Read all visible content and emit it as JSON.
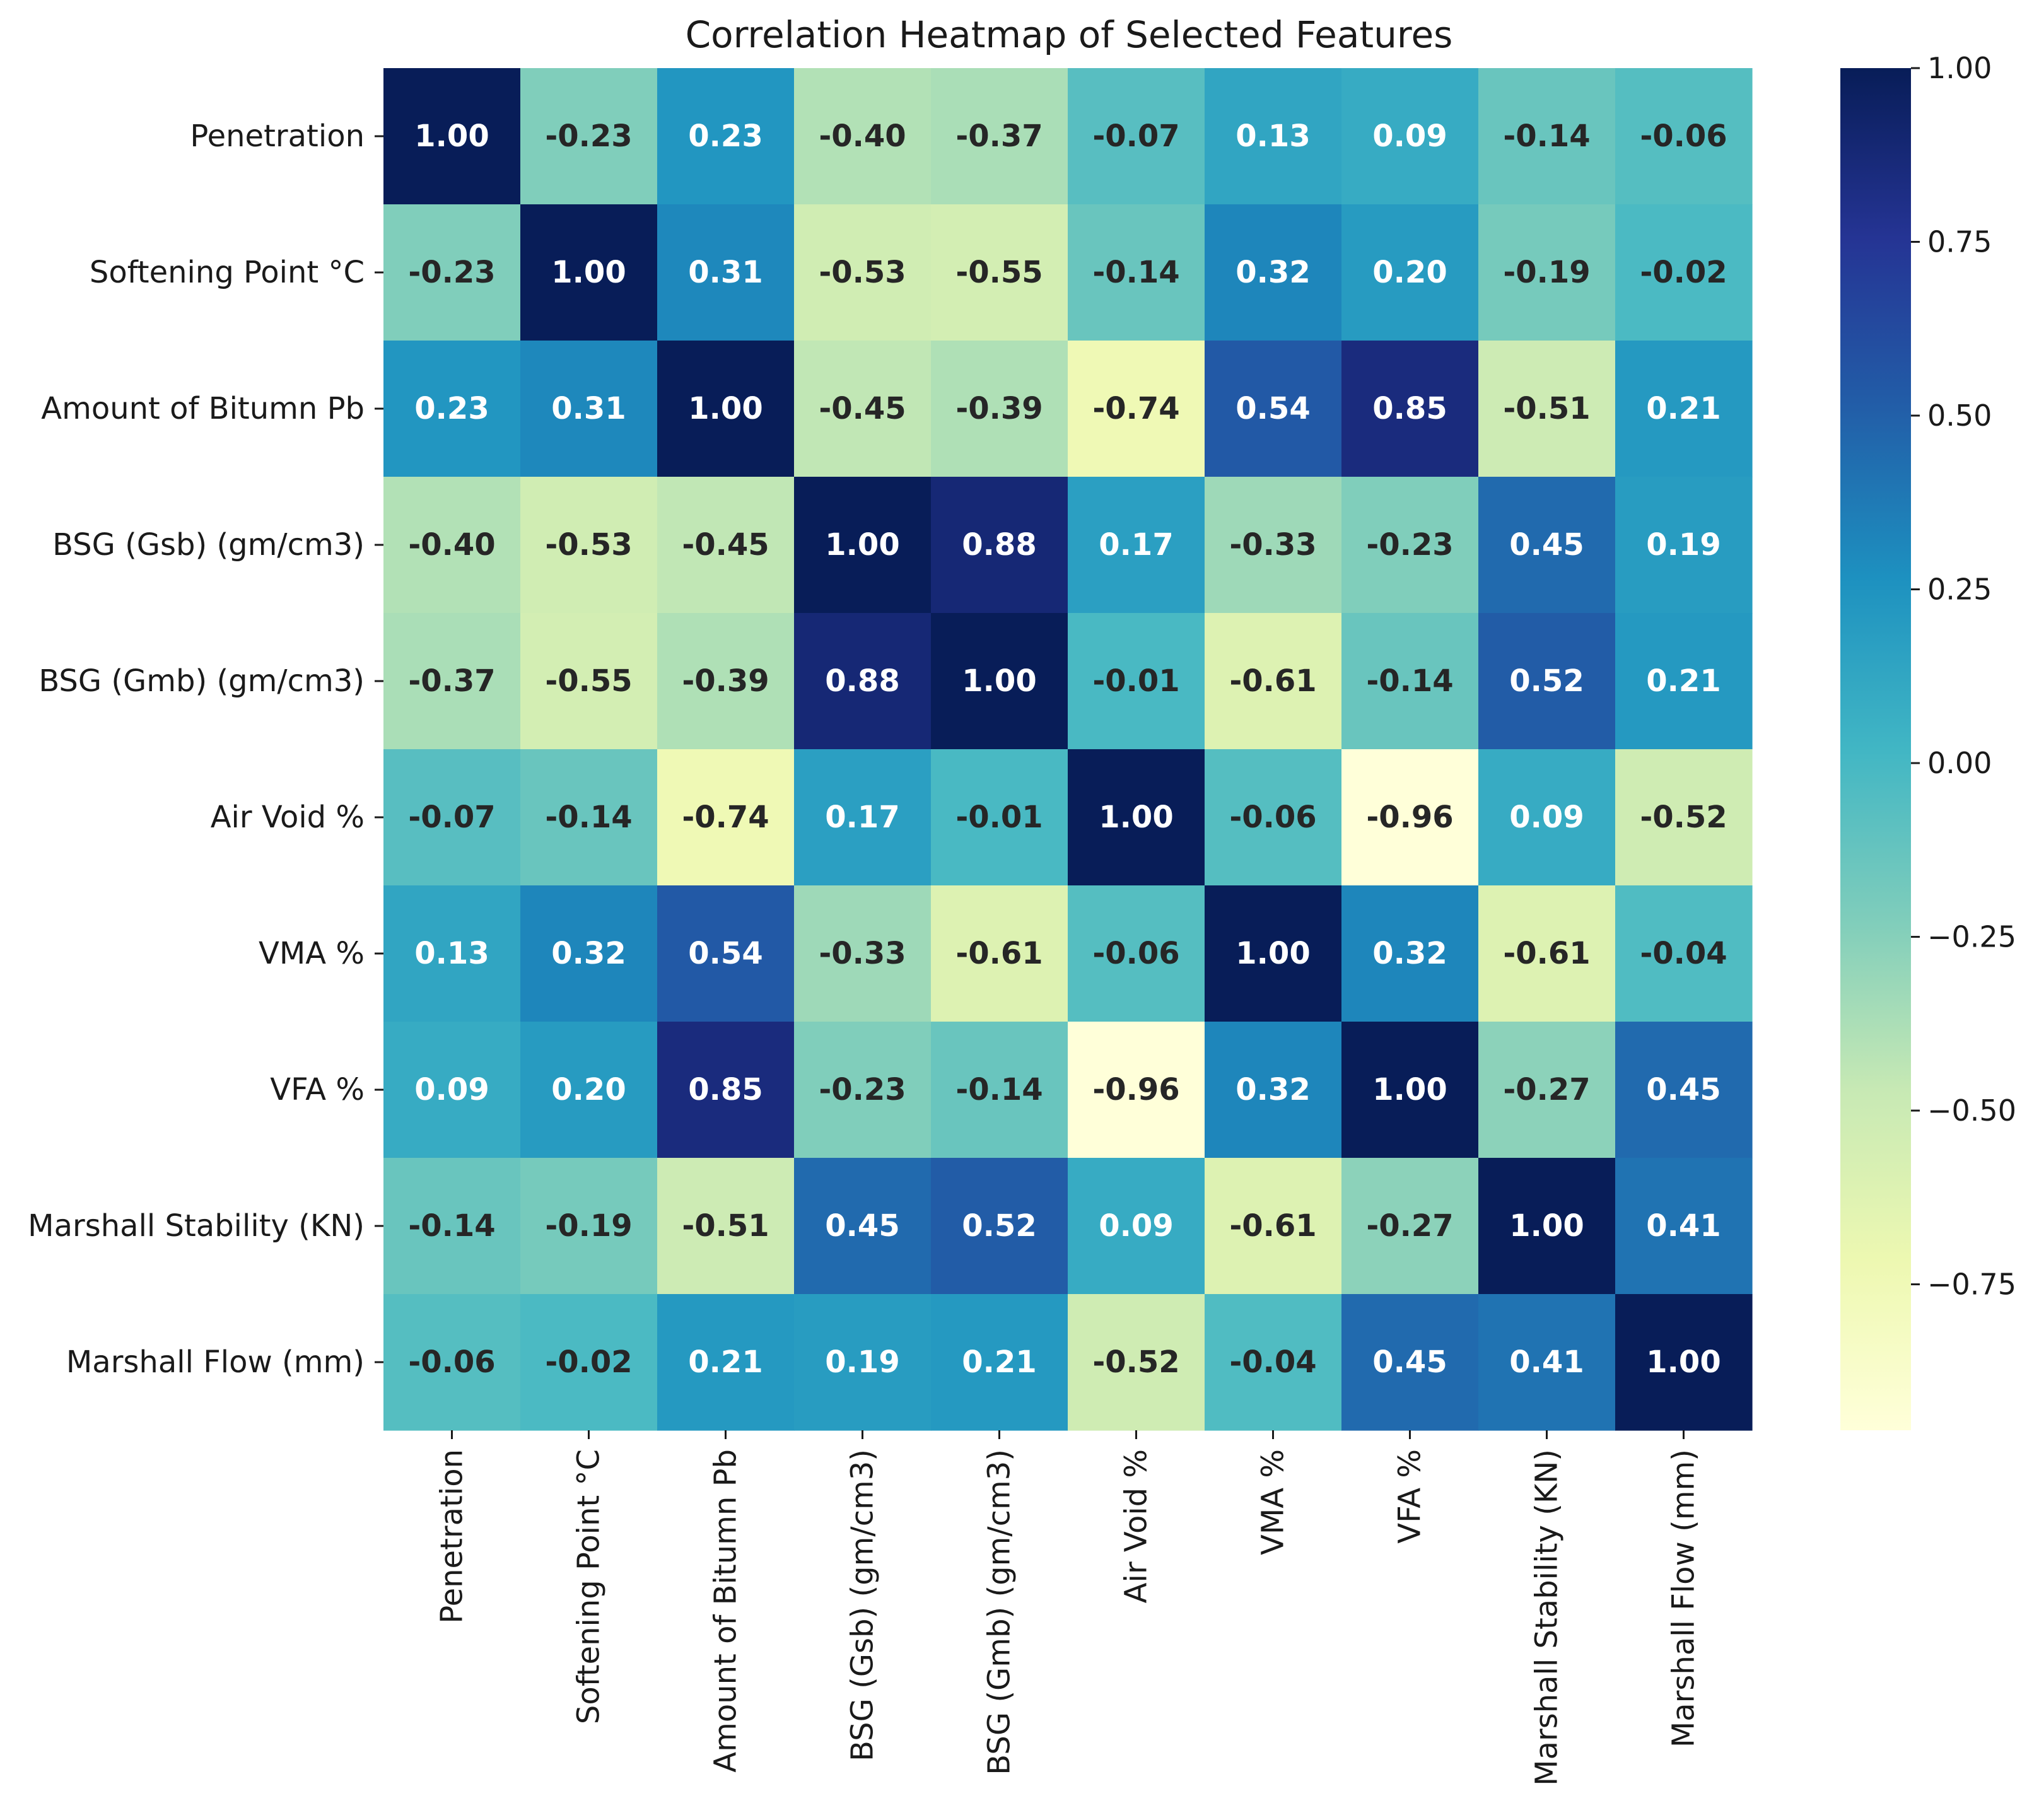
{
  "chart_data": {
    "type": "heatmap",
    "title": "Correlation Heatmap of Selected Features",
    "row_labels": [
      "Penetration",
      "Softening Point °C",
      "Amount of Bitumn Pb",
      "BSG (Gsb) (gm/cm3)",
      "BSG (Gmb) (gm/cm3)",
      "Air Void %",
      "VMA %",
      "VFA %",
      "Marshall Stability (KN)",
      "Marshall Flow (mm)"
    ],
    "col_labels": [
      "Penetration",
      "Softening Point °C",
      "Amount of Bitumn Pb",
      "BSG (Gsb) (gm/cm3)",
      "BSG (Gmb) (gm/cm3)",
      "Air Void %",
      "VMA %",
      "VFA %",
      "Marshall Stability (KN)",
      "Marshall Flow (mm)"
    ],
    "values": [
      [
        1.0,
        -0.23,
        0.23,
        -0.4,
        -0.37,
        -0.07,
        0.13,
        0.09,
        -0.14,
        -0.06
      ],
      [
        -0.23,
        1.0,
        0.31,
        -0.53,
        -0.55,
        -0.14,
        0.32,
        0.2,
        -0.19,
        -0.02
      ],
      [
        0.23,
        0.31,
        1.0,
        -0.45,
        -0.39,
        -0.74,
        0.54,
        0.85,
        -0.51,
        0.21
      ],
      [
        -0.4,
        -0.53,
        -0.45,
        1.0,
        0.88,
        0.17,
        -0.33,
        -0.23,
        0.45,
        0.19
      ],
      [
        -0.37,
        -0.55,
        -0.39,
        0.88,
        1.0,
        -0.01,
        -0.61,
        -0.14,
        0.52,
        0.21
      ],
      [
        -0.07,
        -0.14,
        -0.74,
        0.17,
        -0.01,
        1.0,
        -0.06,
        -0.96,
        0.09,
        -0.52
      ],
      [
        0.13,
        0.32,
        0.54,
        -0.33,
        -0.61,
        -0.06,
        1.0,
        0.32,
        -0.61,
        -0.04
      ],
      [
        0.09,
        0.2,
        0.85,
        -0.23,
        -0.14,
        -0.96,
        0.32,
        1.0,
        -0.27,
        0.45
      ],
      [
        -0.14,
        -0.19,
        -0.51,
        0.45,
        0.52,
        0.09,
        -0.61,
        -0.27,
        1.0,
        0.41
      ],
      [
        -0.06,
        -0.02,
        0.21,
        0.19,
        0.21,
        -0.52,
        -0.04,
        0.45,
        0.41,
        1.0
      ]
    ],
    "value_format": "0.00",
    "colormap": "YlGnBu",
    "colormap_stops": [
      "#ffffd9",
      "#edf8b1",
      "#c7e9b4",
      "#7fcdbb",
      "#41b6c4",
      "#1d91c0",
      "#225ea8",
      "#253494",
      "#081d58"
    ],
    "vmin": -0.96,
    "vmax": 1.0,
    "colorbar": {
      "ticks": [
        1.0,
        0.75,
        0.5,
        0.25,
        0.0,
        -0.25,
        -0.5,
        -0.75
      ],
      "tick_labels": [
        "1.00",
        "0.75",
        "0.50",
        "0.25",
        "0.00",
        "−0.25",
        "−0.50",
        "−0.75"
      ]
    },
    "annotation_dark_color": "#262626",
    "annotation_light_color": "#ffffff",
    "xlabel": "",
    "ylabel": ""
  }
}
